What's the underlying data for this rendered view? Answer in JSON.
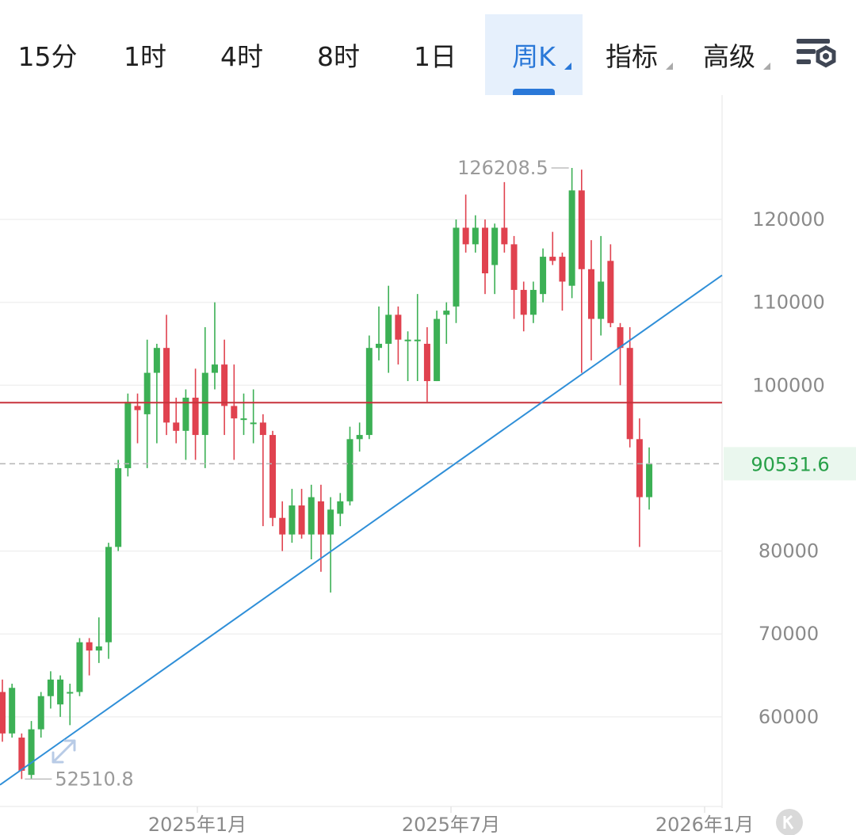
{
  "tabs": [
    {
      "label": "15分",
      "active": false,
      "dropdown": false
    },
    {
      "label": "1时",
      "active": false,
      "dropdown": false
    },
    {
      "label": "4时",
      "active": false,
      "dropdown": false
    },
    {
      "label": "8时",
      "active": false,
      "dropdown": false
    },
    {
      "label": "1日",
      "active": false,
      "dropdown": false
    },
    {
      "label": "周K",
      "active": true,
      "dropdown": true
    },
    {
      "label": "指标",
      "active": false,
      "dropdown": true
    },
    {
      "label": "高级",
      "active": false,
      "dropdown": true
    }
  ],
  "toolbar": {
    "settings_icon": "chart-settings-icon"
  },
  "colors": {
    "up": "#3cb055",
    "down": "#e0424f",
    "accent": "#2a78d8",
    "hline": "#c8323c",
    "trendline": "#2f8fd8",
    "current_label": "#27a048"
  },
  "chart_data": {
    "type": "candlestick",
    "interval": "周K",
    "ylim": [
      49000,
      135000
    ],
    "y_ticks": [
      "60000",
      "70000",
      "80000",
      "90531.6",
      "100000",
      "110000",
      "120000"
    ],
    "y_tick_values": [
      60000,
      70000,
      80000,
      100000,
      110000,
      120000
    ],
    "x_ticks": [
      "2025年1月",
      "2025年7月",
      "2026年1月"
    ],
    "high_label": "126208.5",
    "low_label": "52510.8",
    "current_price": 90531.6,
    "current_price_label": "90531.6",
    "horizontal_line": 97900,
    "trendline": [
      [
        0,
        52000
      ],
      [
        64,
        104600
      ]
    ],
    "candles": [
      [
        0,
        63000,
        58000,
        64500,
        57000
      ],
      [
        1,
        58000,
        63500,
        64000,
        57500
      ],
      [
        2,
        57500,
        53500,
        58000,
        52500
      ],
      [
        3,
        53000,
        58500,
        59500,
        52510.8
      ],
      [
        4,
        58500,
        62500,
        63000,
        57500
      ],
      [
        5,
        62500,
        64500,
        65500,
        61000
      ],
      [
        6,
        61500,
        64500,
        65000,
        60000
      ],
      [
        7,
        63000,
        63000,
        64000,
        59000
      ],
      [
        8,
        63000,
        69000,
        69500,
        62500
      ],
      [
        9,
        69000,
        68000,
        69500,
        65000
      ],
      [
        10,
        68000,
        68500,
        72000,
        66500
      ],
      [
        11,
        69000,
        80500,
        81000,
        67000
      ],
      [
        12,
        80500,
        90000,
        91000,
        80000
      ],
      [
        13,
        90000,
        98000,
        99000,
        89000
      ],
      [
        14,
        97500,
        97000,
        99000,
        93000
      ],
      [
        15,
        96500,
        101500,
        105500,
        90000
      ],
      [
        16,
        101500,
        104500,
        105000,
        93000
      ],
      [
        17,
        104500,
        95500,
        108500,
        94000
      ],
      [
        18,
        95500,
        94500,
        98500,
        93000
      ],
      [
        19,
        94500,
        98500,
        99500,
        91000
      ],
      [
        20,
        98500,
        94000,
        102000,
        91000
      ],
      [
        21,
        94000,
        101500,
        107000,
        90000
      ],
      [
        22,
        101500,
        102500,
        110000,
        99500
      ],
      [
        23,
        102500,
        97500,
        105500,
        94000
      ],
      [
        24,
        97500,
        96000,
        102500,
        91000
      ],
      [
        25,
        96000,
        96000,
        99000,
        94000
      ],
      [
        26,
        95500,
        95500,
        99500,
        93000
      ],
      [
        27,
        95500,
        94000,
        96500,
        83000
      ],
      [
        28,
        94000,
        84000,
        94500,
        83000
      ],
      [
        29,
        84000,
        82000,
        86000,
        80000
      ],
      [
        30,
        82000,
        85500,
        87500,
        81000
      ],
      [
        31,
        85500,
        82000,
        87500,
        81500
      ],
      [
        32,
        82000,
        86500,
        88000,
        79000
      ],
      [
        33,
        86000,
        82000,
        88000,
        77500
      ],
      [
        34,
        82000,
        85000,
        86500,
        75000
      ],
      [
        35,
        84500,
        86000,
        87000,
        83000
      ],
      [
        36,
        86000,
        93500,
        95000,
        85500
      ],
      [
        37,
        93500,
        94000,
        95500,
        92000
      ],
      [
        38,
        94000,
        104500,
        106000,
        93500
      ],
      [
        39,
        104500,
        105000,
        109500,
        103000
      ],
      [
        40,
        105000,
        108500,
        112000,
        101500
      ],
      [
        41,
        108500,
        105500,
        109500,
        102500
      ],
      [
        42,
        105500,
        105500,
        106500,
        100500
      ],
      [
        43,
        105500,
        105500,
        111000,
        100500
      ],
      [
        44,
        105000,
        100500,
        107000,
        98000
      ],
      [
        45,
        100500,
        108000,
        109000,
        100500
      ],
      [
        46,
        108500,
        109000,
        110000,
        105000
      ],
      [
        47,
        109500,
        119000,
        120000,
        107500
      ],
      [
        48,
        119000,
        117000,
        123000,
        116000
      ],
      [
        49,
        117000,
        119000,
        120500,
        116000
      ],
      [
        50,
        119000,
        113500,
        120000,
        111000
      ],
      [
        51,
        114500,
        119000,
        119500,
        111000
      ],
      [
        52,
        119000,
        117000,
        124500,
        116000
      ],
      [
        53,
        117000,
        111500,
        118000,
        108000
      ],
      [
        54,
        111500,
        108500,
        112500,
        106500
      ],
      [
        55,
        108500,
        111500,
        112500,
        107500
      ],
      [
        56,
        111000,
        115500,
        116500,
        110000
      ],
      [
        57,
        115500,
        115000,
        118500,
        114500
      ],
      [
        58,
        115500,
        112500,
        116000,
        109000
      ],
      [
        59,
        112000,
        123500,
        126208.5,
        110500
      ],
      [
        60,
        123500,
        114000,
        126000,
        101500
      ],
      [
        61,
        114000,
        108000,
        117500,
        103000
      ],
      [
        62,
        108000,
        112500,
        118000,
        106000
      ],
      [
        63,
        115000,
        107500,
        117000,
        107000
      ],
      [
        64,
        107000,
        104500,
        107500,
        100000
      ],
      [
        65,
        104500,
        93500,
        107000,
        92500
      ],
      [
        66,
        93500,
        86500,
        96000,
        80500
      ],
      [
        67,
        86500,
        90531.6,
        92500,
        85000
      ]
    ]
  }
}
